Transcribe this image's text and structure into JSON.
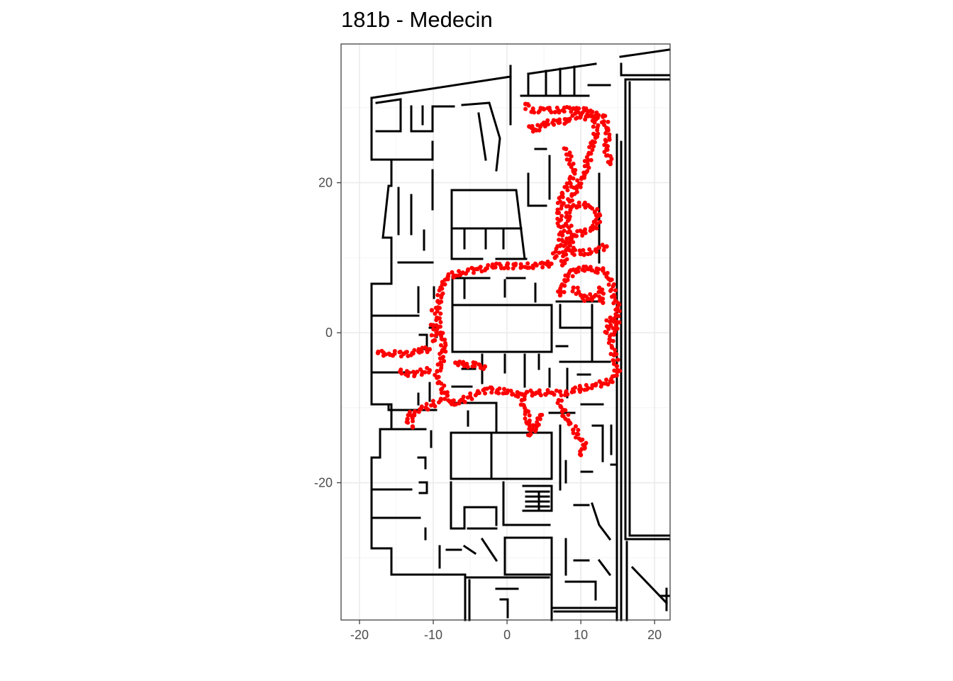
{
  "chart_data": {
    "type": "scatter",
    "title": "181b - Medecin",
    "xlabel": "",
    "ylabel": "",
    "xlim": [
      -22.5,
      22.1
    ],
    "ylim": [
      -38.3,
      38.5
    ],
    "x_ticks": [
      -20,
      -10,
      0,
      10,
      20
    ],
    "y_ticks": [
      -20,
      0,
      20
    ],
    "x_tick_labels": [
      "-20",
      "-10",
      "0",
      "10",
      "20"
    ],
    "y_tick_labels": [
      "-20",
      "0",
      "20"
    ],
    "grid": true,
    "legend": "none",
    "colors": {
      "points": "#ff0000",
      "walls": "#000000",
      "grid_major": "#ebebeb",
      "grid_minor": "#f4f4f4",
      "panel_border": "#333333"
    },
    "trajectory_points": [
      [
        2.5,
        30.5
      ],
      [
        3.5,
        29.5
      ],
      [
        5,
        29.8
      ],
      [
        7,
        29.6
      ],
      [
        9,
        29.9
      ],
      [
        11,
        29.5
      ],
      [
        13,
        28.8
      ],
      [
        13.7,
        27
      ],
      [
        13.5,
        24.5
      ],
      [
        14,
        22.5
      ],
      [
        3,
        27.5
      ],
      [
        4,
        27
      ],
      [
        5,
        28
      ],
      [
        7,
        28
      ],
      [
        8.5,
        28.5
      ],
      [
        10,
        29
      ],
      [
        12,
        28.5
      ],
      [
        12,
        26
      ],
      [
        11.5,
        25
      ],
      [
        11,
        23
      ],
      [
        10.5,
        21
      ],
      [
        9.5,
        19.5
      ],
      [
        8.5,
        17.5
      ],
      [
        8.2,
        15.5
      ],
      [
        8.5,
        13.5
      ],
      [
        8,
        11
      ],
      [
        7.5,
        9
      ],
      [
        8,
        24.5
      ],
      [
        8.5,
        23
      ],
      [
        9,
        21.5
      ],
      [
        8.5,
        20
      ],
      [
        7.5,
        18.5
      ],
      [
        7,
        16
      ],
      [
        7.5,
        13
      ],
      [
        6.5,
        10
      ],
      [
        9,
        17
      ],
      [
        11,
        17
      ],
      [
        12.5,
        15.8
      ],
      [
        12,
        14
      ],
      [
        10.5,
        13.5
      ],
      [
        9,
        13
      ],
      [
        8.5,
        11
      ],
      [
        10,
        10.5
      ],
      [
        12,
        11
      ],
      [
        13.5,
        11.5
      ],
      [
        6,
        9.2
      ],
      [
        4,
        9
      ],
      [
        2,
        8.8
      ],
      [
        0,
        9
      ],
      [
        -2,
        8.8
      ],
      [
        -4,
        8.5
      ],
      [
        -6,
        8
      ],
      [
        -8,
        7.5
      ],
      [
        -9,
        6
      ],
      [
        -9.2,
        4
      ],
      [
        -9.5,
        2
      ],
      [
        -9,
        0
      ],
      [
        -8.5,
        -2
      ],
      [
        -9,
        -4
      ],
      [
        -9.5,
        -6
      ],
      [
        -8.5,
        -8
      ],
      [
        -7.5,
        -9.5
      ],
      [
        -6,
        -9
      ],
      [
        -4,
        -8
      ],
      [
        -2,
        -7.5
      ],
      [
        0,
        -8
      ],
      [
        2,
        -8.2
      ],
      [
        4,
        -8
      ],
      [
        6,
        -8
      ],
      [
        8,
        -8
      ],
      [
        10,
        -7.5
      ],
      [
        12,
        -7
      ],
      [
        14,
        -6.5
      ],
      [
        15,
        -5
      ],
      [
        14.5,
        -3
      ],
      [
        14,
        -1
      ],
      [
        14.8,
        1
      ],
      [
        15,
        3
      ],
      [
        14.5,
        5
      ],
      [
        14,
        7
      ],
      [
        13,
        8.3
      ],
      [
        11,
        8.5
      ],
      [
        9,
        8.4
      ],
      [
        7.8,
        7
      ],
      [
        7.2,
        5
      ],
      [
        7,
        -9
      ],
      [
        7.5,
        -10.5
      ],
      [
        8.5,
        -12
      ],
      [
        9.5,
        -13.5
      ],
      [
        10.5,
        -15
      ],
      [
        10,
        -16.3
      ],
      [
        2,
        -9
      ],
      [
        2.5,
        -10.5
      ],
      [
        3,
        -12
      ],
      [
        3.2,
        -13.5
      ],
      [
        4,
        -12.5
      ],
      [
        4.5,
        -11
      ],
      [
        -9,
        -9
      ],
      [
        -11,
        -10
      ],
      [
        -12.5,
        -10.5
      ],
      [
        -13.5,
        -11.5
      ],
      [
        -12.8,
        -12.5
      ],
      [
        -10.5,
        -5
      ],
      [
        -12.5,
        -5.5
      ],
      [
        -14.5,
        -5.2
      ],
      [
        -7,
        -4
      ],
      [
        -5.5,
        -4.2
      ],
      [
        -3,
        -4.5
      ],
      [
        -17.5,
        -2.7
      ],
      [
        -16,
        -2.8
      ],
      [
        -14,
        -2.8
      ],
      [
        -12,
        -2.5
      ],
      [
        -10.5,
        -2.2
      ],
      [
        -10,
        1
      ],
      [
        -9.8,
        -1
      ],
      [
        -10.2,
        3
      ],
      [
        14,
        2
      ],
      [
        13.5,
        0
      ],
      [
        13,
        4
      ],
      [
        12.5,
        6
      ],
      [
        9,
        6
      ],
      [
        10,
        5
      ],
      [
        11,
        4.5
      ],
      [
        12,
        5
      ]
    ]
  }
}
